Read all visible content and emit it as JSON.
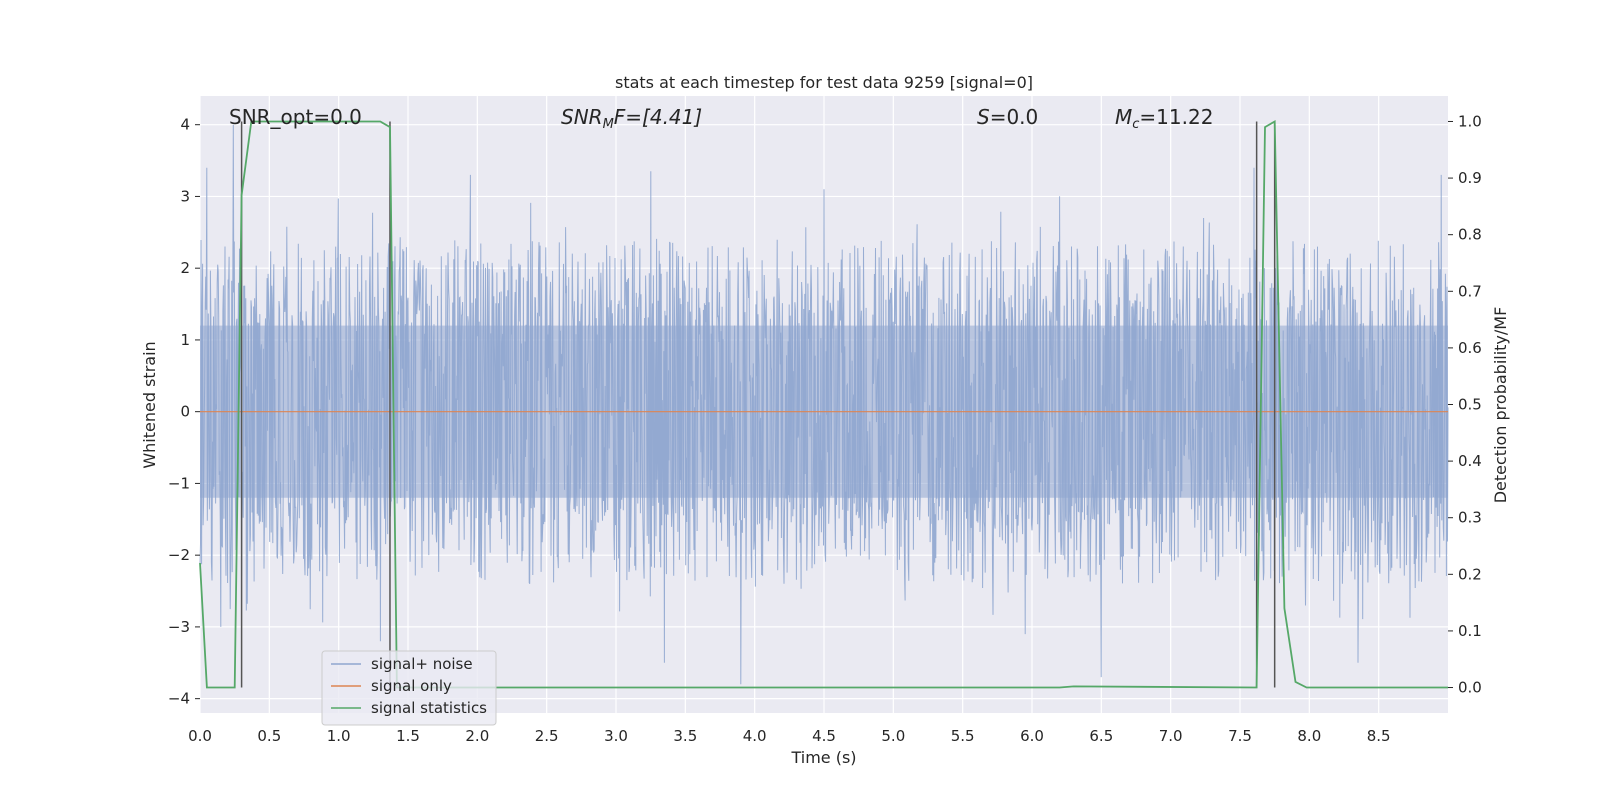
{
  "chart_data": {
    "type": "line",
    "title": "stats at each timestep for test data 9259 [signal=0]",
    "xlabel": "Time (s)",
    "ylabel_left": "Whitened strain",
    "ylabel_right": "Detection probability/MF",
    "xlim": [
      0,
      9.0
    ],
    "ylim_left": [
      -4.2,
      4.4
    ],
    "ylim_right": [
      -0.045,
      1.045
    ],
    "x_ticks": [
      "0.0",
      "0.5",
      "1.0",
      "1.5",
      "2.0",
      "2.5",
      "3.0",
      "3.5",
      "4.0",
      "4.5",
      "5.0",
      "5.5",
      "6.0",
      "6.5",
      "7.0",
      "7.5",
      "8.0",
      "8.5"
    ],
    "y_ticks_left": [
      "−4",
      "−3",
      "−2",
      "−1",
      "0",
      "1",
      "2",
      "3",
      "4"
    ],
    "y_ticks_right": [
      "0.0",
      "0.1",
      "0.2",
      "0.3",
      "0.4",
      "0.5",
      "0.6",
      "0.7",
      "0.8",
      "0.9",
      "1.0"
    ],
    "grid": true,
    "legend_position": "lower-left",
    "annotations": {
      "snr_opt": "SNR_opt=0.0",
      "snr_mf_base": "SNR",
      "snr_mf_sub": "M",
      "snr_mf_rest": "F=[4.41]",
      "s_base": "S",
      "s_rest": "=0.0",
      "mc_base": "M",
      "mc_sub": "c",
      "mc_rest": "=11.22"
    },
    "series": [
      {
        "name": "signal+ noise",
        "color": "#8fa6cf",
        "typical_range": [
          -1.5,
          1.5
        ],
        "peaks_pos": [
          [
            0.05,
            3.4
          ],
          [
            0.24,
            4.0
          ],
          [
            1.95,
            3.3
          ],
          [
            3.25,
            3.35
          ],
          [
            4.5,
            3.1
          ],
          [
            7.6,
            3.4
          ],
          [
            8.35,
            3.2
          ],
          [
            8.95,
            3.3
          ]
        ],
        "peaks_neg": [
          [
            0.15,
            -3.0
          ],
          [
            1.3,
            -3.2
          ],
          [
            3.35,
            -3.5
          ],
          [
            3.9,
            -3.8
          ],
          [
            5.95,
            -3.1
          ],
          [
            6.5,
            -3.7
          ],
          [
            8.35,
            -3.5
          ]
        ]
      },
      {
        "name": "signal only",
        "color": "#dd8452",
        "x": [
          0,
          9.0
        ],
        "y": [
          0,
          0
        ]
      },
      {
        "name": "signal statistics",
        "color": "#55a868",
        "axis": "right",
        "x": [
          0.0,
          0.05,
          0.25,
          0.3,
          0.37,
          1.3,
          1.37,
          1.42,
          1.5,
          6.2,
          6.3,
          7.62,
          7.68,
          7.75,
          7.82,
          7.9,
          7.98,
          9.0
        ],
        "y": [
          0.22,
          0.0,
          0.0,
          0.87,
          1.0,
          1.0,
          0.99,
          0.0,
          0.0,
          0.0,
          0.002,
          0.0,
          0.99,
          1.0,
          0.14,
          0.01,
          0.0,
          0.0
        ]
      }
    ],
    "vertical_markers": {
      "color": "#555555",
      "x": [
        0.3,
        1.37,
        7.62,
        7.75
      ],
      "range": [
        -0.0,
        1.0
      ]
    }
  }
}
